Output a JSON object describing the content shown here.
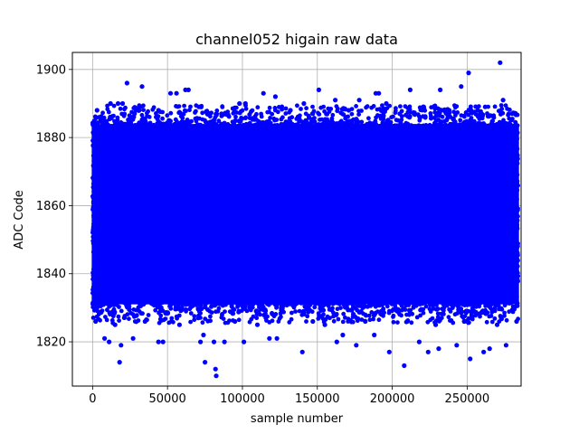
{
  "chart_data": {
    "type": "scatter",
    "title": "channel052 higain raw data",
    "xlabel": "sample number",
    "ylabel": "ADC Code",
    "xlim": [
      -13500,
      286000
    ],
    "ylim": [
      1807,
      1905
    ],
    "x_ticks": [
      0,
      50000,
      100000,
      150000,
      200000,
      250000
    ],
    "x_tick_labels": [
      "0",
      "50000",
      "100000",
      "150000",
      "200000",
      "250000"
    ],
    "y_ticks": [
      1820,
      1840,
      1860,
      1880,
      1900
    ],
    "y_tick_labels": [
      "1820",
      "1840",
      "1860",
      "1880",
      "1900"
    ],
    "grid": true,
    "marker_color": "#0000ff",
    "sample_range": [
      0,
      284000
    ],
    "dense_band": [
      1831,
      1884
    ],
    "points": [
      [
        23000,
        1896
      ],
      [
        33000,
        1895
      ],
      [
        62000,
        1894
      ],
      [
        64000,
        1894
      ],
      [
        52000,
        1893
      ],
      [
        56000,
        1893
      ],
      [
        114000,
        1893
      ],
      [
        122000,
        1892
      ],
      [
        151000,
        1894
      ],
      [
        189000,
        1893
      ],
      [
        191000,
        1893
      ],
      [
        212000,
        1894
      ],
      [
        232000,
        1894
      ],
      [
        246000,
        1895
      ],
      [
        251000,
        1899
      ],
      [
        272000,
        1902
      ],
      [
        274000,
        1891
      ],
      [
        12000,
        1890
      ],
      [
        17000,
        1890
      ],
      [
        20000,
        1890
      ],
      [
        71000,
        1889
      ],
      [
        98000,
        1890
      ],
      [
        102000,
        1890
      ],
      [
        141000,
        1890
      ],
      [
        162000,
        1891
      ],
      [
        178000,
        1891
      ],
      [
        196000,
        1890
      ],
      [
        221000,
        1889
      ],
      [
        238000,
        1888
      ],
      [
        262000,
        1889
      ],
      [
        3000,
        1888
      ],
      [
        28000,
        1887
      ],
      [
        44000,
        1888
      ],
      [
        86000,
        1887
      ],
      [
        132000,
        1888
      ],
      [
        171000,
        1888
      ],
      [
        205000,
        1887
      ],
      [
        257000,
        1888
      ],
      [
        280000,
        1887
      ],
      [
        18000,
        1814
      ],
      [
        75000,
        1814
      ],
      [
        82000,
        1812
      ],
      [
        82500,
        1810
      ],
      [
        208000,
        1813
      ],
      [
        252000,
        1815
      ],
      [
        8000,
        1821
      ],
      [
        11000,
        1820
      ],
      [
        19000,
        1819
      ],
      [
        27000,
        1821
      ],
      [
        44000,
        1820
      ],
      [
        47000,
        1820
      ],
      [
        72000,
        1820
      ],
      [
        74000,
        1822
      ],
      [
        81000,
        1820
      ],
      [
        88000,
        1820
      ],
      [
        101000,
        1820
      ],
      [
        118000,
        1821
      ],
      [
        123000,
        1821
      ],
      [
        140000,
        1817
      ],
      [
        163000,
        1820
      ],
      [
        167000,
        1822
      ],
      [
        176000,
        1819
      ],
      [
        188000,
        1822
      ],
      [
        198000,
        1817
      ],
      [
        218000,
        1820
      ],
      [
        224000,
        1817
      ],
      [
        231000,
        1818
      ],
      [
        243000,
        1819
      ],
      [
        261000,
        1817
      ],
      [
        265000,
        1818
      ],
      [
        276000,
        1819
      ],
      [
        2000,
        1826
      ],
      [
        15000,
        1825
      ],
      [
        35000,
        1826
      ],
      [
        58000,
        1825
      ],
      [
        95000,
        1826
      ],
      [
        110000,
        1825
      ],
      [
        147000,
        1826
      ],
      [
        155000,
        1825
      ],
      [
        182000,
        1826
      ],
      [
        210000,
        1826
      ],
      [
        229000,
        1825
      ],
      [
        248000,
        1826
      ],
      [
        270000,
        1825
      ],
      [
        283000,
        1826
      ]
    ],
    "noise_count": 1600
  }
}
